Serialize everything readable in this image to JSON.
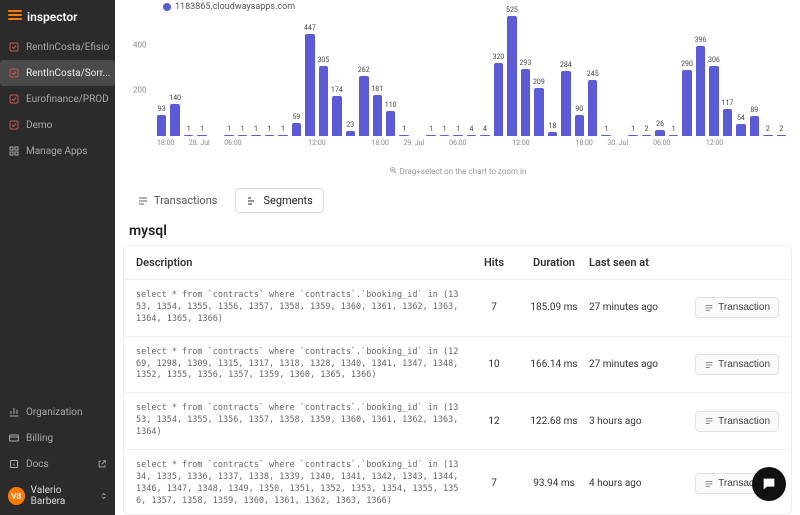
{
  "brand": {
    "name": "inspector"
  },
  "sidebar": {
    "items": [
      {
        "label": "RentInCosta/Efisio",
        "active": false
      },
      {
        "label": "RentInCosta/Sorr...",
        "active": true
      },
      {
        "label": "Eurofinance/PROD",
        "active": false
      },
      {
        "label": "Demo",
        "active": false
      },
      {
        "label": "Manage Apps",
        "active": false
      }
    ],
    "bottom": [
      {
        "label": "Organization"
      },
      {
        "label": "Billing"
      },
      {
        "label": "Docs"
      }
    ],
    "user": {
      "initials": "VB",
      "name": "Valerio Barbera"
    }
  },
  "chart": {
    "legend": "1183865.cloudwaysapps.com",
    "type": "bar",
    "bar_color": "#5b5bd6",
    "background_color": "#ffffff",
    "ymax": 525,
    "ylabels": [
      400,
      200
    ],
    "values": [
      93,
      140,
      1,
      1,
      null,
      1,
      1,
      1,
      1,
      1,
      59,
      447,
      305,
      174,
      23,
      262,
      181,
      110,
      1,
      null,
      1,
      1,
      1,
      4,
      4,
      320,
      525,
      293,
      209,
      18,
      284,
      90,
      245,
      1,
      null,
      1,
      2,
      26,
      1,
      290,
      396,
      306,
      117,
      54,
      89,
      2,
      2
    ],
    "xaxis": [
      "18:00",
      "",
      "28. Jul",
      "",
      "06:00",
      "",
      "",
      "",
      "",
      "",
      "",
      "12:00",
      "",
      "",
      "",
      "",
      "18:00",
      "",
      "29. Jul",
      "",
      "",
      "06:00",
      "",
      "",
      "",
      "",
      "12:00",
      "",
      "",
      "",
      "",
      "18:00",
      "",
      "30. Jul",
      "",
      "",
      "06:00",
      "",
      "",
      "",
      "12:00",
      "",
      "",
      "",
      "",
      "",
      ""
    ],
    "hint": "Drag+select on the chart to zoom in"
  },
  "tabs": {
    "transactions": "Transactions",
    "segments": "Segments"
  },
  "section": {
    "title": "mysql"
  },
  "table": {
    "headers": {
      "description": "Description",
      "hits": "Hits",
      "duration": "Duration",
      "last_seen": "Last seen at"
    },
    "action_label": "Transaction",
    "rows": [
      {
        "desc": "select * from `contracts` where `contracts`.`booking_id` in (1353, 1354, 1355, 1356, 1357, 1358, 1359, 1360, 1361, 1362, 1363, 1364, 1365, 1366)",
        "hits": "7",
        "duration": "185.09 ms",
        "last_seen": "27 minutes ago"
      },
      {
        "desc": "select * from `contracts` where `contracts`.`booking_id` in (1269, 1298, 1309, 1315, 1317, 1318, 1328, 1340, 1341, 1347, 1348, 1352, 1355, 1356, 1357, 1359, 1360, 1365, 1366)",
        "hits": "10",
        "duration": "166.14 ms",
        "last_seen": "27 minutes ago"
      },
      {
        "desc": "select * from `contracts` where `contracts`.`booking_id` in (1353, 1354, 1355, 1356, 1357, 1358, 1359, 1360, 1361, 1362, 1363, 1364)",
        "hits": "12",
        "duration": "122.68 ms",
        "last_seen": "3 hours ago"
      },
      {
        "desc": "select * from `contracts` where `contracts`.`booking_id` in (1334, 1335, 1336, 1337, 1338, 1339, 1340, 1341, 1342, 1343, 1344, 1346, 1347, 1348, 1349, 1350, 1351, 1352, 1353, 1354, 1355, 1356, 1357, 1358, 1359, 1360, 1361, 1362, 1363, 1366)",
        "hits": "7",
        "duration": "93.94 ms",
        "last_seen": "4 hours ago"
      }
    ]
  }
}
